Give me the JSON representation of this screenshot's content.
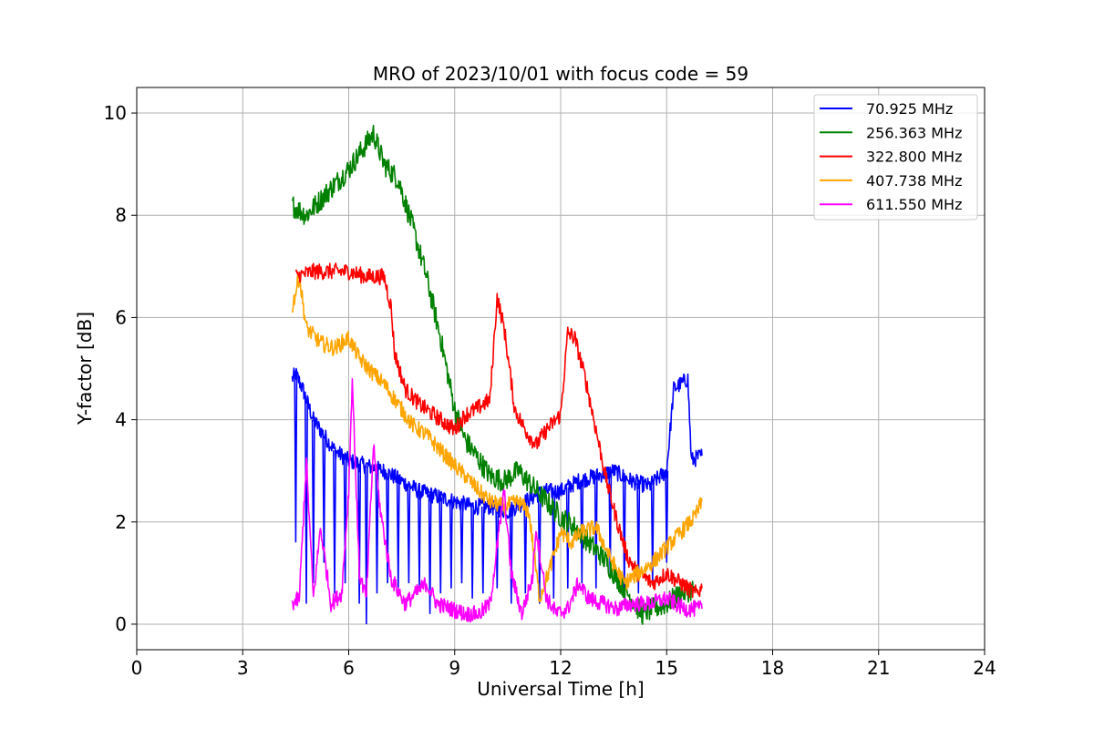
{
  "chart_data": {
    "type": "line",
    "title": "MRO of 2023/10/01 with focus code = 59",
    "xlabel": "Universal Time [h]",
    "ylabel": "Y-factor [dB]",
    "xlim": [
      0,
      24
    ],
    "ylim": [
      -0.5,
      10.5
    ],
    "xticks": [
      0,
      3,
      6,
      9,
      12,
      15,
      18,
      21,
      24
    ],
    "yticks": [
      0,
      2,
      4,
      6,
      8,
      10
    ],
    "grid": true,
    "legend_position": "top-right",
    "series": [
      {
        "name": "70.925 MHz",
        "label": "  70.925 MHz",
        "color": "#0000ff",
        "points": [
          [
            4.4,
            4.8
          ],
          [
            4.5,
            4.9
          ],
          [
            4.7,
            4.6
          ],
          [
            5.0,
            4.0
          ],
          [
            5.3,
            3.7
          ],
          [
            5.6,
            3.4
          ],
          [
            6.0,
            3.2
          ],
          [
            6.5,
            3.1
          ],
          [
            7.0,
            3.0
          ],
          [
            7.5,
            2.8
          ],
          [
            8.0,
            2.6
          ],
          [
            8.5,
            2.5
          ],
          [
            9.0,
            2.4
          ],
          [
            9.5,
            2.3
          ],
          [
            10.0,
            2.3
          ],
          [
            10.5,
            2.2
          ],
          [
            11.0,
            2.4
          ],
          [
            11.5,
            2.6
          ],
          [
            12.0,
            2.6
          ],
          [
            12.5,
            2.8
          ],
          [
            13.0,
            2.9
          ],
          [
            13.5,
            3.0
          ],
          [
            14.0,
            2.8
          ],
          [
            14.5,
            2.7
          ],
          [
            15.0,
            3.0
          ],
          [
            15.2,
            4.6
          ],
          [
            15.6,
            4.8
          ],
          [
            15.7,
            3.2
          ],
          [
            16.0,
            3.3
          ]
        ],
        "dips": [
          [
            4.5,
            1.6
          ],
          [
            4.8,
            0.4
          ],
          [
            5.0,
            0.8
          ],
          [
            5.3,
            1.2
          ],
          [
            5.6,
            0.6
          ],
          [
            5.9,
            0.8
          ],
          [
            6.3,
            0.4
          ],
          [
            6.5,
            0.0
          ],
          [
            6.8,
            0.6
          ],
          [
            7.1,
            0.8
          ],
          [
            7.4,
            0.7
          ],
          [
            7.7,
            0.8
          ],
          [
            8.0,
            0.7
          ],
          [
            8.3,
            0.2
          ],
          [
            8.6,
            0.6
          ],
          [
            8.9,
            0.7
          ],
          [
            9.2,
            0.8
          ],
          [
            9.5,
            0.5
          ],
          [
            9.8,
            0.6
          ],
          [
            10.2,
            0.7
          ],
          [
            10.6,
            0.4
          ],
          [
            11.0,
            0.6
          ],
          [
            11.4,
            0.4
          ],
          [
            11.8,
            0.5
          ],
          [
            12.2,
            0.7
          ],
          [
            12.6,
            0.8
          ],
          [
            13.0,
            0.7
          ],
          [
            13.4,
            0.9
          ],
          [
            13.8,
            0.6
          ],
          [
            14.2,
            0.6
          ],
          [
            14.6,
            0.8
          ],
          [
            15.0,
            1.2
          ]
        ]
      },
      {
        "name": "256.363 MHz",
        "label": "256.363 MHz",
        "color": "#008000",
        "points": [
          [
            4.4,
            8.2
          ],
          [
            4.8,
            8.0
          ],
          [
            5.2,
            8.3
          ],
          [
            5.6,
            8.6
          ],
          [
            6.0,
            8.9
          ],
          [
            6.3,
            9.2
          ],
          [
            6.7,
            9.6
          ],
          [
            7.0,
            9.0
          ],
          [
            7.4,
            8.7
          ],
          [
            7.8,
            7.8
          ],
          [
            8.2,
            6.8
          ],
          [
            8.6,
            5.6
          ],
          [
            9.0,
            4.2
          ],
          [
            9.3,
            3.6
          ],
          [
            9.7,
            3.2
          ],
          [
            10.0,
            2.9
          ],
          [
            10.4,
            2.8
          ],
          [
            10.8,
            3.0
          ],
          [
            11.2,
            2.7
          ],
          [
            11.6,
            2.4
          ],
          [
            12.0,
            2.1
          ],
          [
            12.4,
            1.9
          ],
          [
            12.8,
            1.6
          ],
          [
            13.2,
            1.3
          ],
          [
            13.6,
            0.9
          ],
          [
            14.0,
            0.5
          ],
          [
            14.3,
            0.2
          ],
          [
            14.6,
            0.3
          ],
          [
            15.0,
            0.4
          ],
          [
            15.4,
            0.6
          ],
          [
            15.8,
            0.7
          ]
        ],
        "dips": []
      },
      {
        "name": "322.800 MHz",
        "label": "322.800 MHz",
        "color": "#ff0000",
        "points": [
          [
            4.5,
            6.8
          ],
          [
            5.0,
            6.9
          ],
          [
            5.5,
            6.9
          ],
          [
            6.0,
            6.9
          ],
          [
            6.5,
            6.8
          ],
          [
            7.0,
            6.8
          ],
          [
            7.2,
            6.2
          ],
          [
            7.3,
            5.3
          ],
          [
            7.6,
            4.6
          ],
          [
            8.0,
            4.3
          ],
          [
            8.4,
            4.1
          ],
          [
            8.8,
            3.9
          ],
          [
            9.0,
            3.8
          ],
          [
            9.3,
            4.1
          ],
          [
            9.6,
            4.2
          ],
          [
            10.0,
            4.4
          ],
          [
            10.2,
            6.4
          ],
          [
            10.4,
            5.8
          ],
          [
            10.7,
            4.2
          ],
          [
            11.0,
            3.8
          ],
          [
            11.3,
            3.5
          ],
          [
            11.6,
            3.8
          ],
          [
            12.0,
            4.1
          ],
          [
            12.2,
            5.7
          ],
          [
            12.4,
            5.6
          ],
          [
            12.7,
            4.8
          ],
          [
            13.0,
            3.8
          ],
          [
            13.3,
            2.8
          ],
          [
            13.6,
            2.0
          ],
          [
            13.9,
            1.3
          ],
          [
            14.2,
            1.0
          ],
          [
            14.6,
            0.8
          ],
          [
            15.0,
            1.0
          ],
          [
            15.4,
            0.8
          ],
          [
            15.8,
            0.6
          ],
          [
            16.0,
            0.7
          ]
        ],
        "dips": []
      },
      {
        "name": "407.738 MHz",
        "label": "407.738 MHz",
        "color": "#ffa500",
        "points": [
          [
            4.4,
            6.2
          ],
          [
            4.6,
            6.8
          ],
          [
            4.8,
            5.8
          ],
          [
            5.2,
            5.5
          ],
          [
            5.6,
            5.4
          ],
          [
            6.0,
            5.6
          ],
          [
            6.3,
            5.2
          ],
          [
            6.7,
            4.9
          ],
          [
            7.0,
            4.7
          ],
          [
            7.4,
            4.3
          ],
          [
            7.8,
            3.9
          ],
          [
            8.2,
            3.7
          ],
          [
            8.6,
            3.4
          ],
          [
            9.0,
            3.1
          ],
          [
            9.3,
            2.9
          ],
          [
            9.7,
            2.6
          ],
          [
            10.0,
            2.4
          ],
          [
            10.4,
            2.3
          ],
          [
            10.8,
            2.4
          ],
          [
            11.1,
            2.2
          ],
          [
            11.4,
            0.5
          ],
          [
            11.7,
            1.1
          ],
          [
            12.0,
            1.8
          ],
          [
            12.3,
            1.6
          ],
          [
            12.6,
            1.8
          ],
          [
            13.0,
            1.9
          ],
          [
            13.4,
            1.3
          ],
          [
            13.8,
            0.8
          ],
          [
            14.2,
            1.0
          ],
          [
            14.6,
            1.2
          ],
          [
            15.0,
            1.5
          ],
          [
            15.4,
            1.8
          ],
          [
            15.8,
            2.1
          ],
          [
            16.0,
            2.4
          ]
        ],
        "dips": []
      },
      {
        "name": "611.550 MHz",
        "label": "611.550 MHz",
        "color": "#ff00ff",
        "points": [
          [
            4.4,
            0.4
          ],
          [
            4.6,
            0.5
          ],
          [
            4.8,
            3.2
          ],
          [
            5.0,
            0.5
          ],
          [
            5.2,
            1.9
          ],
          [
            5.5,
            0.4
          ],
          [
            5.8,
            0.6
          ],
          [
            6.0,
            2.6
          ],
          [
            6.1,
            4.8
          ],
          [
            6.3,
            1.0
          ],
          [
            6.5,
            0.5
          ],
          [
            6.7,
            3.5
          ],
          [
            6.9,
            2.2
          ],
          [
            7.2,
            0.9
          ],
          [
            7.6,
            0.4
          ],
          [
            7.9,
            0.6
          ],
          [
            8.2,
            0.8
          ],
          [
            8.5,
            0.4
          ],
          [
            8.9,
            0.3
          ],
          [
            9.3,
            0.2
          ],
          [
            9.7,
            0.2
          ],
          [
            10.0,
            0.4
          ],
          [
            10.2,
            1.5
          ],
          [
            10.4,
            2.6
          ],
          [
            10.6,
            1.0
          ],
          [
            10.9,
            0.2
          ],
          [
            11.2,
            0.9
          ],
          [
            11.3,
            1.9
          ],
          [
            11.6,
            0.5
          ],
          [
            11.9,
            0.2
          ],
          [
            12.2,
            0.3
          ],
          [
            12.5,
            0.8
          ],
          [
            12.8,
            0.5
          ],
          [
            13.2,
            0.4
          ],
          [
            13.6,
            0.3
          ],
          [
            14.0,
            0.4
          ],
          [
            14.5,
            0.4
          ],
          [
            15.0,
            0.5
          ],
          [
            15.5,
            0.3
          ],
          [
            16.0,
            0.3
          ]
        ],
        "dips": []
      }
    ]
  }
}
